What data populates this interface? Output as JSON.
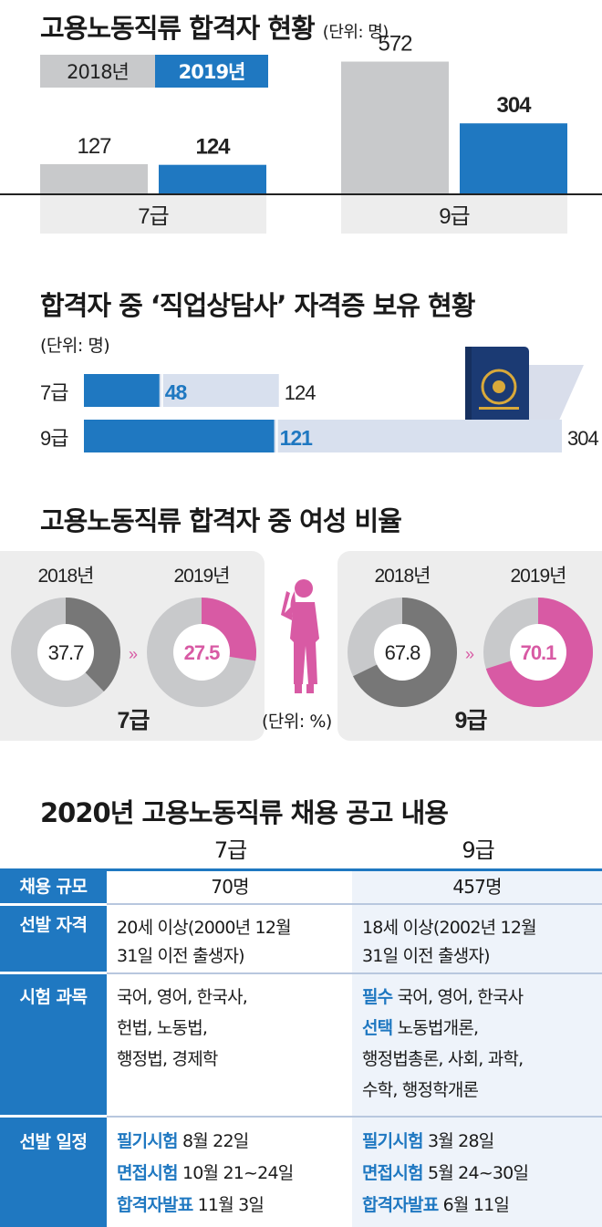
{
  "chart_data": [
    {
      "type": "bar",
      "title": "고용노동직류 합격자 현황",
      "unit": "(단위: 명)",
      "categories": [
        "7급",
        "9급"
      ],
      "series": [
        {
          "name": "2018년",
          "values": [
            127,
            572
          ],
          "color": "#c8c9cb"
        },
        {
          "name": "2019년",
          "values": [
            124,
            304
          ],
          "color": "#1f78c1"
        }
      ],
      "ylim": [
        0,
        600
      ]
    },
    {
      "type": "bar",
      "title": "합격자 중 ‘직업상담사’ 자격증 보유 현황",
      "unit": "(단위: 명)",
      "categories": [
        "7급",
        "9급"
      ],
      "holders": [
        48,
        121
      ],
      "totals": [
        124,
        304
      ],
      "bar_color": "#1f78c1",
      "track_color": "#d8e0ee",
      "icon": "passport-icon"
    },
    {
      "type": "pie",
      "title": "고용노동직류 합격자 중 여성 비율",
      "unit": "(단위: %)",
      "groups": [
        {
          "label": "7급",
          "years": [
            {
              "year": "2018년",
              "value": 37.7
            },
            {
              "year": "2019년",
              "value": 27.5
            }
          ]
        },
        {
          "label": "9급",
          "years": [
            {
              "year": "2018년",
              "value": 67.8
            },
            {
              "year": "2019년",
              "value": 70.1
            }
          ]
        }
      ],
      "colors": {
        "2018": "#777777",
        "2019": "#d85aa4",
        "rest": "#c8c9cb"
      },
      "icon": "woman-silhouette-icon"
    }
  ],
  "table": {
    "title": "2020년 고용노동직류 채용 공고 내용",
    "columns": [
      "7급",
      "9급"
    ],
    "rows": [
      {
        "label": "채용 규모",
        "c7": [
          "70명"
        ],
        "c9": [
          "457명"
        ]
      },
      {
        "label": "선발 자격",
        "c7": [
          "20세 이상(2000년 12월",
          "31일 이전 출생자)"
        ],
        "c9": [
          "18세 이상(2002년 12월",
          "31일 이전 출생자)"
        ]
      },
      {
        "label": "시험 과목",
        "c7": [
          "국어, 영어, 한국사,",
          "헌법, 노동법,",
          "행정법, 경제학"
        ],
        "c9": [
          {
            "b": "필수",
            "t": " 국어, 영어, 한국사"
          },
          {
            "b": "선택",
            "t": " 노동법개론,"
          },
          {
            "b": "",
            "t": "행정법총론, 사회, 과학,"
          },
          {
            "b": "",
            "t": "수학, 행정학개론"
          }
        ]
      },
      {
        "label": "선발 일정",
        "c7": [
          {
            "b": "필기시험",
            "t": " 8월 22일"
          },
          {
            "b": "면접시험",
            "t": " 10월 21~24일"
          },
          {
            "b": "합격자발표",
            "t": " 11월 3일"
          }
        ],
        "c9": [
          {
            "b": "필기시험",
            "t": " 3월 28일"
          },
          {
            "b": "면접시험",
            "t": " 5월 24~30일"
          },
          {
            "b": "합격자발표",
            "t": " 6월 11일"
          }
        ]
      }
    ]
  }
}
